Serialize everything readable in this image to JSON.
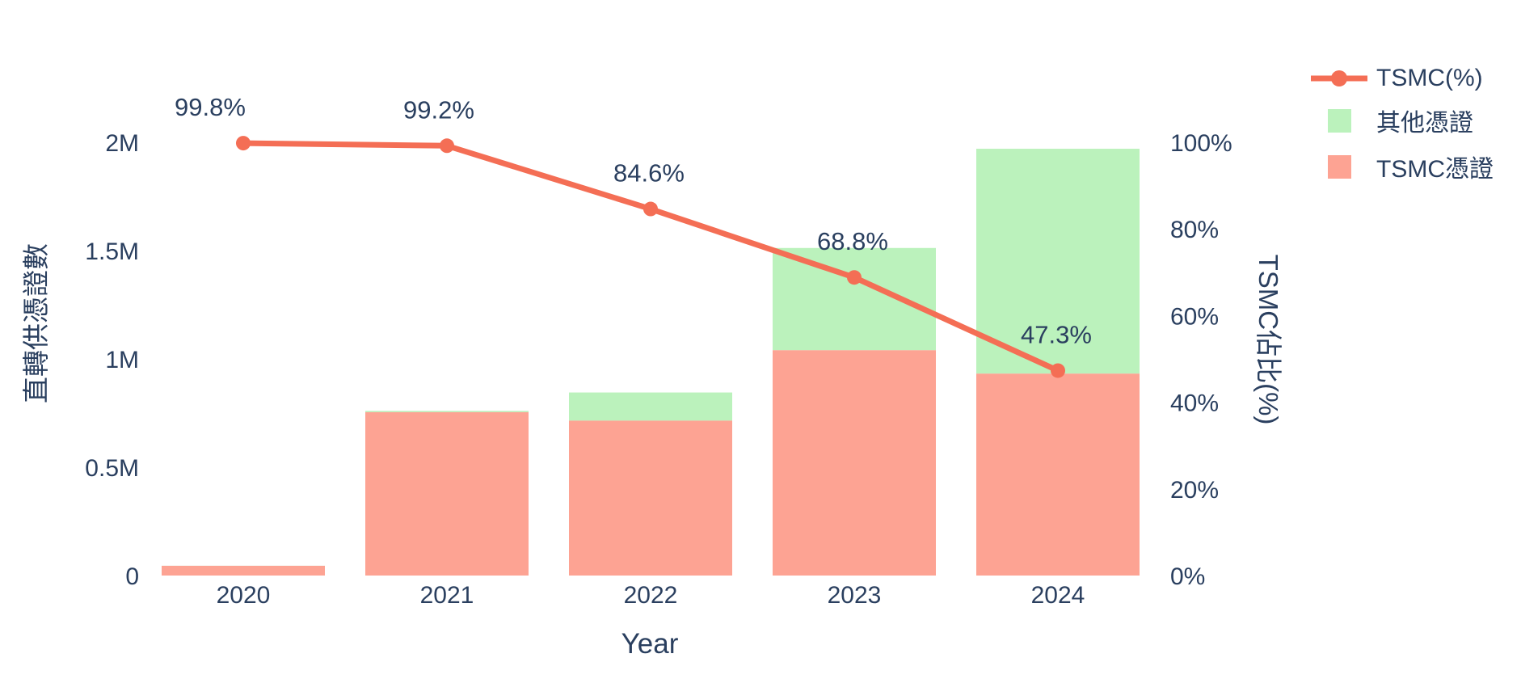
{
  "chart_data": {
    "type": "combo-stacked-bar-line",
    "title": "",
    "xlabel": "Year",
    "ylabel_left": "直轉供憑證數",
    "ylabel_right": "TSMC佔比(%)",
    "categories": [
      "2020",
      "2021",
      "2022",
      "2023",
      "2024"
    ],
    "series": [
      {
        "name": "TSMC憑證",
        "type": "bar",
        "stack": "certificates",
        "axis": "left",
        "color": "#fda393",
        "values": [
          45000,
          754000,
          715000,
          1040000,
          932000
        ]
      },
      {
        "name": "其他憑證",
        "type": "bar",
        "stack": "certificates",
        "axis": "left",
        "color": "#bbf2bc",
        "values": [
          100,
          6000,
          130000,
          472000,
          1038000
        ]
      },
      {
        "name": "TSMC(%)",
        "type": "line",
        "axis": "right",
        "color": "#f46e55",
        "values": [
          99.8,
          99.2,
          84.6,
          68.8,
          47.3
        ],
        "point_labels": [
          "99.8%",
          "99.2%",
          "84.6%",
          "68.8%",
          "47.3%"
        ]
      }
    ],
    "yticks_left": [
      "0",
      "0.5M",
      "1M",
      "1.5M",
      "2M"
    ],
    "yticks_right": [
      "0%",
      "20%",
      "40%",
      "60%",
      "80%",
      "100%"
    ],
    "ylim_left": [
      0,
      2000000
    ],
    "ylim_right": [
      0,
      100
    ],
    "grid": false,
    "legend_position": "top-right",
    "background_color": "#ffffff",
    "text_color": "#2a3f5f"
  }
}
